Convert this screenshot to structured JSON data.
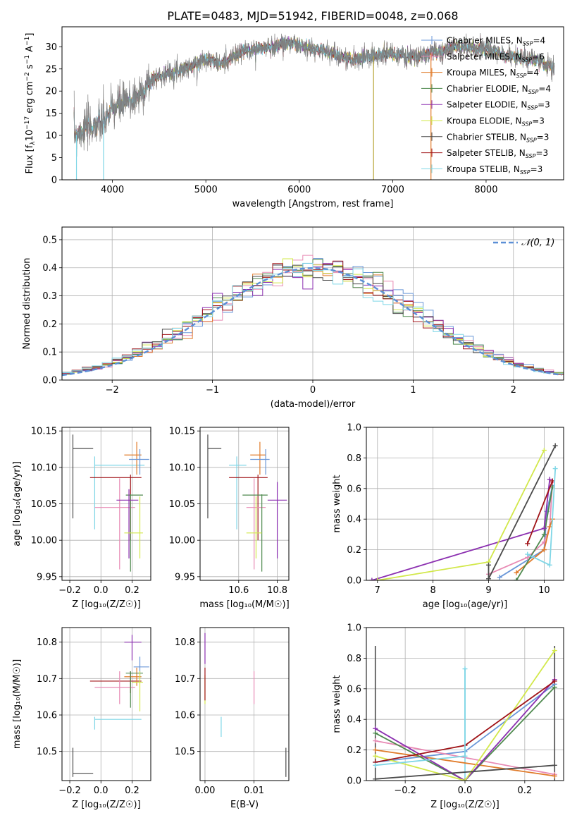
{
  "figure": {
    "title": "PLATE=0483, MJD=51942, FIBERID=0048, z=0.068"
  },
  "colors": {
    "Chabrier MILES": "#6a97d8",
    "Salpeter MILES": "#e88ab4",
    "Kroupa MILES": "#e07b2a",
    "Chabrier ELODIE": "#4f8a4f",
    "Salpeter ELODIE": "#8b2fb0",
    "Kroupa ELODIE": "#d2e84a",
    "Chabrier STELIB": "#4a4a4a",
    "Salpeter STELIB": "#a01418",
    "Kroupa STELIB": "#7fd6e6",
    "normal": "#5b8fd6"
  },
  "chart_data": [
    {
      "id": "spectrum",
      "type": "line",
      "xlabel": "wavelength [Angstrom, rest frame]",
      "ylabel_parts": [
        "Flux [f",
        "λ",
        "10",
        "−17",
        " erg cm",
        "−2",
        " s",
        "−1",
        " A",
        "−1",
        "]"
      ],
      "xlim": [
        3460,
        8830
      ],
      "ylim": [
        0,
        34.5
      ],
      "xticks": [
        4000,
        5000,
        6000,
        7000,
        8000
      ],
      "yticks": [
        0,
        5,
        10,
        15,
        20,
        25,
        30
      ],
      "continuum": [
        [
          3580,
          10
        ],
        [
          3700,
          11.5
        ],
        [
          3900,
          13
        ],
        [
          4000,
          16
        ],
        [
          4250,
          18.5
        ],
        [
          4450,
          23
        ],
        [
          4650,
          24.5
        ],
        [
          4850,
          25.5
        ],
        [
          5000,
          27.5
        ],
        [
          5150,
          26
        ],
        [
          5400,
          29
        ],
        [
          5700,
          30
        ],
        [
          5900,
          31
        ],
        [
          6100,
          29.5
        ],
        [
          6300,
          29
        ],
        [
          6560,
          27
        ],
        [
          6800,
          28
        ],
        [
          7000,
          28.5
        ],
        [
          7200,
          27.5
        ],
        [
          7400,
          28.5
        ],
        [
          7700,
          30
        ],
        [
          8000,
          29.5
        ],
        [
          8200,
          28
        ],
        [
          8500,
          27
        ],
        [
          8720,
          25.5
        ]
      ],
      "spectrum_range": [
        3590,
        8730
      ],
      "masked": [
        [
          3590,
          3640
        ],
        [
          3850,
          3960
        ],
        [
          6790,
          6800
        ],
        [
          7400,
          7420
        ]
      ],
      "legend": [
        {
          "name": "Chabrier MILES",
          "nssp": "4"
        },
        {
          "name": "Salpeter MILES",
          "nssp": "6"
        },
        {
          "name": "Kroupa MILES",
          "nssp": "4"
        },
        {
          "name": "Chabrier ELODIE",
          "nssp": "4"
        },
        {
          "name": "Salpeter ELODIE",
          "nssp": "3"
        },
        {
          "name": "Kroupa ELODIE",
          "nssp": "3"
        },
        {
          "name": "Chabrier STELIB",
          "nssp": "3"
        },
        {
          "name": "Salpeter STELIB",
          "nssp": "3"
        },
        {
          "name": "Kroupa STELIB",
          "nssp": "3"
        }
      ],
      "legend_loc": "top-right"
    },
    {
      "id": "residuals",
      "type": "histogram",
      "xlabel": "(data-model)/error",
      "ylabel": "Normed distribution",
      "xlim": [
        -2.5,
        2.5
      ],
      "ylim": [
        0,
        0.545
      ],
      "xticks": [
        -2,
        -1,
        0,
        1,
        2
      ],
      "yticks": [
        0.0,
        0.1,
        0.2,
        0.3,
        0.4,
        0.5
      ],
      "grid": true,
      "bin_width": 0.1,
      "legend": [
        {
          "label": "𝒩(0, 1)",
          "series": "normal"
        }
      ],
      "legend_loc": "top-right"
    },
    {
      "id": "age-vs-Z",
      "type": "scatter",
      "xlabel": "Z [log₁₀(Z/Z☉)]",
      "ylabel": "age  [log₁₀(age/yr)]",
      "xlim": [
        -0.25,
        0.32
      ],
      "ylim": [
        9.945,
        10.155
      ],
      "xticks": [
        -0.2,
        0.0,
        0.2
      ],
      "yticks": [
        9.95,
        10.0,
        10.05,
        10.1,
        10.15
      ],
      "grid": true,
      "points": [
        {
          "s": "Chabrier STELIB",
          "x": -0.18,
          "xe": [
            -0.18,
            -0.05
          ],
          "y": 10.126,
          "ye": [
            10.03,
            10.145
          ]
        },
        {
          "s": "Kroupa STELIB",
          "x": -0.04,
          "xe": [
            -0.04,
            0.28
          ],
          "y": 10.103,
          "ye": [
            10.015,
            10.115
          ]
        },
        {
          "s": "Salpeter STELIB",
          "x": 0.19,
          "xe": [
            -0.07,
            0.26
          ],
          "y": 10.086,
          "ye": [
            10.0,
            10.09
          ]
        },
        {
          "s": "Salpeter MILES",
          "x": 0.12,
          "xe": [
            -0.04,
            0.22
          ],
          "y": 10.045,
          "ye": [
            9.96,
            10.085
          ]
        },
        {
          "s": "Kroupa MILES",
          "x": 0.23,
          "xe": [
            0.15,
            0.26
          ],
          "y": 10.117,
          "ye": [
            10.09,
            10.135
          ]
        },
        {
          "s": "Chabrier MILES",
          "x": 0.25,
          "xe": [
            0.18,
            0.31
          ],
          "y": 10.111,
          "ye": [
            10.09,
            10.125
          ]
        },
        {
          "s": "Chabrier ELODIE",
          "x": 0.19,
          "xe": [
            0.16,
            0.27
          ],
          "y": 10.062,
          "ye": [
            9.957,
            10.063
          ]
        },
        {
          "s": "Salpeter ELODIE",
          "x": 0.18,
          "xe": [
            0.1,
            0.24
          ],
          "y": 10.055,
          "ye": [
            9.975,
            10.07
          ]
        },
        {
          "s": "Kroupa ELODIE",
          "x": 0.25,
          "xe": [
            0.15,
            0.27
          ],
          "y": 10.01,
          "ye": [
            9.975,
            10.06
          ]
        }
      ]
    },
    {
      "id": "age-vs-mass",
      "type": "scatter",
      "xlabel": "mass [log₁₀(M/M☉)]",
      "ylabel": "",
      "xlim": [
        10.4,
        10.86
      ],
      "ylim": [
        9.945,
        10.155
      ],
      "xticks": [
        10.6,
        10.8
      ],
      "yticks": [
        9.95,
        10.0,
        10.05,
        10.1,
        10.15
      ],
      "grid": true,
      "points": [
        {
          "s": "Chabrier STELIB",
          "x": 10.44,
          "xe": [
            10.44,
            10.51
          ],
          "y": 10.126,
          "ye": [
            10.03,
            10.145
          ]
        },
        {
          "s": "Kroupa STELIB",
          "x": 10.59,
          "xe": [
            10.55,
            10.64
          ],
          "y": 10.103,
          "ye": [
            10.015,
            10.115
          ]
        },
        {
          "s": "Salpeter STELIB",
          "x": 10.7,
          "xe": [
            10.55,
            10.75
          ],
          "y": 10.086,
          "ye": [
            10.0,
            10.09
          ]
        },
        {
          "s": "Salpeter MILES",
          "x": 10.68,
          "xe": [
            10.64,
            10.74
          ],
          "y": 10.045,
          "ye": [
            9.96,
            10.085
          ]
        },
        {
          "s": "Kroupa MILES",
          "x": 10.71,
          "xe": [
            10.66,
            10.74
          ],
          "y": 10.117,
          "ye": [
            10.09,
            10.135
          ]
        },
        {
          "s": "Chabrier MILES",
          "x": 10.74,
          "xe": [
            10.66,
            10.76
          ],
          "y": 10.111,
          "ye": [
            10.09,
            10.125
          ]
        },
        {
          "s": "Chabrier ELODIE",
          "x": 10.72,
          "xe": [
            10.62,
            10.75
          ],
          "y": 10.062,
          "ye": [
            9.957,
            10.063
          ]
        },
        {
          "s": "Salpeter ELODIE",
          "x": 10.8,
          "xe": [
            10.75,
            10.85
          ],
          "y": 10.055,
          "ye": [
            9.975,
            10.08
          ]
        },
        {
          "s": "Kroupa ELODIE",
          "x": 10.69,
          "xe": [
            10.64,
            10.72
          ],
          "y": 10.01,
          "ye": [
            9.975,
            10.06
          ]
        }
      ]
    },
    {
      "id": "weight-vs-age",
      "type": "line",
      "xlabel": "age  [log₁₀(age/yr)]",
      "ylabel": "mass weight",
      "xlim": [
        6.8,
        10.35
      ],
      "ylim": [
        0,
        1.0
      ],
      "xticks": [
        7,
        8,
        9,
        10
      ],
      "yticks": [
        0.0,
        0.2,
        0.4,
        0.6,
        0.8,
        1.0
      ],
      "grid": true,
      "series": [
        {
          "s": "Chabrier MILES",
          "points": [
            [
              9.2,
              0.02
            ],
            [
              10.0,
              0.2
            ],
            [
              10.05,
              0.45
            ],
            [
              10.15,
              0.62
            ]
          ]
        },
        {
          "s": "Salpeter MILES",
          "points": [
            [
              9.0,
              0.04
            ],
            [
              9.7,
              0.15
            ],
            [
              10.0,
              0.25
            ],
            [
              10.1,
              0.35
            ],
            [
              10.15,
              0.64
            ]
          ]
        },
        {
          "s": "Kroupa MILES",
          "points": [
            [
              9.5,
              0.05
            ],
            [
              10.0,
              0.2
            ],
            [
              10.1,
              0.35
            ],
            [
              10.15,
              0.4
            ]
          ]
        },
        {
          "s": "Chabrier ELODIE",
          "points": [
            [
              9.5,
              0.0
            ],
            [
              10.0,
              0.3
            ],
            [
              10.15,
              0.61
            ]
          ]
        },
        {
          "s": "Salpeter ELODIE",
          "points": [
            [
              6.9,
              0.0
            ],
            [
              10.0,
              0.34
            ],
            [
              10.1,
              0.66
            ]
          ]
        },
        {
          "s": "Kroupa ELODIE",
          "points": [
            [
              7.0,
              0.0
            ],
            [
              9.0,
              0.12
            ],
            [
              10.0,
              0.85
            ]
          ]
        },
        {
          "s": "Chabrier STELIB",
          "points": [
            [
              9.0,
              0.1
            ],
            [
              9.0,
              0.01
            ],
            [
              10.2,
              0.88
            ]
          ]
        },
        {
          "s": "Salpeter STELIB",
          "points": [
            [
              9.7,
              0.24
            ],
            [
              10.15,
              0.65
            ]
          ]
        },
        {
          "s": "Kroupa STELIB",
          "points": [
            [
              9.7,
              0.17
            ],
            [
              10.1,
              0.1
            ],
            [
              10.2,
              0.73
            ]
          ]
        }
      ]
    },
    {
      "id": "mass-vs-Z",
      "type": "scatter",
      "xlabel": "Z [log₁₀(Z/Z☉)]",
      "ylabel": "mass [log₁₀(M/M☉)]",
      "xlim": [
        -0.25,
        0.32
      ],
      "ylim": [
        10.42,
        10.84
      ],
      "xticks": [
        -0.2,
        0.0,
        0.2
      ],
      "yticks": [
        10.5,
        10.6,
        10.7,
        10.8
      ],
      "grid": true,
      "points": [
        {
          "s": "Chabrier STELIB",
          "x": -0.18,
          "xe": [
            -0.18,
            -0.05
          ],
          "y": 10.44,
          "ye": [
            10.43,
            10.51
          ]
        },
        {
          "s": "Kroupa STELIB",
          "x": -0.04,
          "xe": [
            -0.04,
            0.26
          ],
          "y": 10.588,
          "ye": [
            10.56,
            10.595
          ]
        },
        {
          "s": "Salpeter STELIB",
          "x": 0.19,
          "xe": [
            -0.07,
            0.26
          ],
          "y": 10.693,
          "ye": [
            10.66,
            10.72
          ]
        },
        {
          "s": "Salpeter MILES",
          "x": 0.12,
          "xe": [
            -0.04,
            0.22
          ],
          "y": 10.676,
          "ye": [
            10.63,
            10.72
          ]
        },
        {
          "s": "Kroupa MILES",
          "x": 0.23,
          "xe": [
            0.15,
            0.26
          ],
          "y": 10.705,
          "ye": [
            10.68,
            10.73
          ]
        },
        {
          "s": "Chabrier MILES",
          "x": 0.25,
          "xe": [
            0.21,
            0.31
          ],
          "y": 10.732,
          "ye": [
            10.7,
            10.76
          ]
        },
        {
          "s": "Chabrier ELODIE",
          "x": 0.19,
          "xe": [
            0.16,
            0.27
          ],
          "y": 10.715,
          "ye": [
            10.62,
            10.72
          ]
        },
        {
          "s": "Salpeter ELODIE",
          "x": 0.2,
          "xe": [
            0.15,
            0.26
          ],
          "y": 10.8,
          "ye": [
            10.75,
            10.82
          ]
        },
        {
          "s": "Kroupa ELODIE",
          "x": 0.25,
          "xe": [
            0.2,
            0.27
          ],
          "y": 10.69,
          "ye": [
            10.61,
            10.72
          ]
        }
      ]
    },
    {
      "id": "mass-vs-EBV",
      "type": "scatter",
      "xlabel": "E(B-V)",
      "ylabel": "",
      "xlim": [
        -0.001,
        0.0171
      ],
      "ylim": [
        10.42,
        10.84
      ],
      "xticks": [
        0.0,
        0.01
      ],
      "yticks": [
        10.5,
        10.6,
        10.7,
        10.8
      ],
      "grid": true,
      "points": [
        {
          "s": "Salpeter ELODIE",
          "x": 0.0,
          "xe": [
            0.0,
            0.0
          ],
          "y": 10.78,
          "ye": [
            10.74,
            10.825
          ]
        },
        {
          "s": "Kroupa ELODIE",
          "x": 0.0,
          "xe": [
            0.0,
            0.0
          ],
          "y": 10.67,
          "ye": [
            10.63,
            10.71
          ]
        },
        {
          "s": "Salpeter STELIB",
          "x": 0.0,
          "xe": [
            0.0,
            0.0
          ],
          "y": 10.69,
          "ye": [
            10.64,
            10.73
          ]
        },
        {
          "s": "Salpeter MILES",
          "x": 0.01,
          "xe": [
            0.01,
            0.01
          ],
          "y": 10.68,
          "ye": [
            10.63,
            10.72
          ]
        },
        {
          "s": "Kroupa STELIB",
          "x": 0.0033,
          "xe": [
            0.0033,
            0.0033
          ],
          "y": 10.57,
          "ye": [
            10.54,
            10.595
          ]
        },
        {
          "s": "Chabrier STELIB",
          "x": 0.0165,
          "xe": [
            0.0165,
            0.0165
          ],
          "y": 10.47,
          "ye": [
            10.43,
            10.51
          ]
        }
      ]
    },
    {
      "id": "weight-vs-Z",
      "type": "line",
      "xlabel": "Z [log₁₀(Z/Z☉)]",
      "ylabel": "mass weight",
      "xlim": [
        -0.33,
        0.33
      ],
      "ylim": [
        0,
        1.0
      ],
      "xticks": [
        -0.2,
        0.0,
        0.2
      ],
      "yticks": [
        0.0,
        0.2,
        0.4,
        0.6,
        0.8,
        1.0
      ],
      "grid": true,
      "series": [
        {
          "s": "Chabrier MILES",
          "points": [
            [
              -0.3,
              0.12
            ],
            [
              0.0,
              0.19
            ],
            [
              0.3,
              0.63
            ]
          ]
        },
        {
          "s": "Salpeter MILES",
          "points": [
            [
              -0.3,
              0.26
            ],
            [
              0.3,
              0.04
            ]
          ]
        },
        {
          "s": "Kroupa MILES",
          "points": [
            [
              -0.3,
              0.2
            ],
            [
              0.3,
              0.03
            ]
          ]
        },
        {
          "s": "Chabrier ELODIE",
          "points": [
            [
              -0.3,
              0.31
            ],
            [
              0.0,
              0.0
            ],
            [
              0.3,
              0.61
            ]
          ]
        },
        {
          "s": "Salpeter ELODIE",
          "points": [
            [
              -0.3,
              0.34
            ],
            [
              0.0,
              0.0
            ],
            [
              0.3,
              0.66
            ]
          ]
        },
        {
          "s": "Kroupa ELODIE",
          "points": [
            [
              -0.3,
              0.16
            ],
            [
              0.0,
              0.0
            ],
            [
              0.3,
              0.85
            ]
          ]
        },
        {
          "s": "Chabrier STELIB",
          "points": [
            [
              -0.3,
              0.01
            ],
            [
              0.3,
              0.1
            ]
          ]
        },
        {
          "s": "Salpeter STELIB",
          "points": [
            [
              -0.3,
              0.12
            ],
            [
              0.0,
              0.23
            ],
            [
              0.3,
              0.65
            ]
          ]
        },
        {
          "s": "Kroupa STELIB",
          "points": [
            [
              -0.3,
              0.1
            ],
            [
              0.0,
              0.16
            ],
            [
              0.0,
              0.73
            ]
          ]
        }
      ],
      "vlines": [
        {
          "s": "Chabrier STELIB",
          "x": -0.3,
          "y": [
            0.01,
            0.88
          ]
        },
        {
          "s": "Kroupa STELIB",
          "x": 0.0,
          "y": [
            0.0,
            0.73
          ]
        },
        {
          "s": "Chabrier STELIB",
          "x": 0.3,
          "y": [
            0.0,
            0.88
          ]
        }
      ]
    }
  ]
}
